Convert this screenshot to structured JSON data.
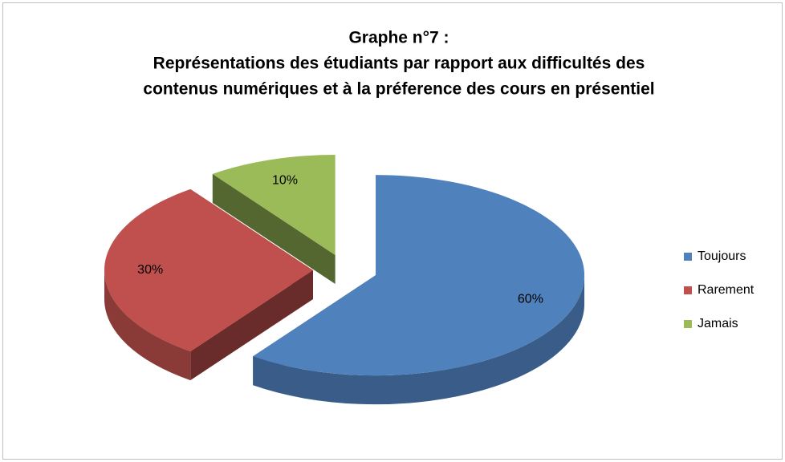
{
  "chart_data": {
    "type": "pie",
    "title": [
      "Graphe n°7 :",
      "Représentations des étudiants par rapport aux difficultés des",
      "contenus numériques et à la préference des cours en présentiel"
    ],
    "categories": [
      "Toujours",
      "Rarement",
      "Jamais"
    ],
    "values": [
      60,
      30,
      10
    ],
    "value_labels": [
      "60%",
      "30%",
      "10%"
    ],
    "colors": [
      "#4f81bd",
      "#c0504d",
      "#9bbb59"
    ],
    "legend": "right"
  }
}
